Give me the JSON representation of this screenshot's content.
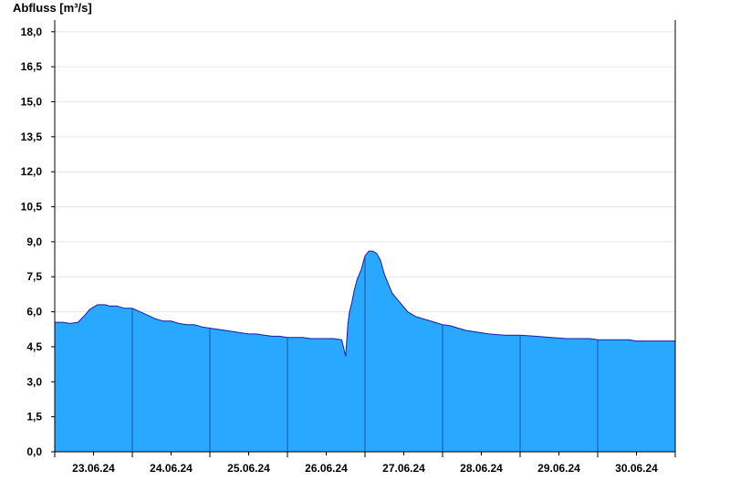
{
  "chart_data": {
    "type": "area",
    "ylabel": "Abfluss [m³/s]",
    "ylim": [
      0,
      18.5
    ],
    "y_ticks": [
      0.0,
      1.5,
      3.0,
      4.5,
      6.0,
      7.5,
      9.0,
      10.5,
      12.0,
      13.5,
      15.0,
      16.5,
      18.0
    ],
    "y_tick_labels": [
      "0,0",
      "1,5",
      "3,0",
      "4,5",
      "6,0",
      "7,5",
      "9,0",
      "10,5",
      "12,0",
      "13,5",
      "15,0",
      "16,5",
      "18,0"
    ],
    "x_range_days": [
      0,
      8
    ],
    "day_labels": [
      "23.06.24",
      "24.06.24",
      "25.06.24",
      "26.06.24",
      "27.06.24",
      "28.06.24",
      "29.06.24",
      "30.06.24"
    ],
    "grid": true,
    "series": [
      {
        "x": [
          0.0,
          0.1,
          0.2,
          0.3,
          0.4,
          0.45,
          0.55,
          0.6,
          0.65,
          0.7,
          0.8,
          0.9,
          1.0,
          1.1,
          1.2,
          1.3,
          1.4,
          1.5,
          1.6,
          1.7,
          1.8,
          1.9,
          2.0,
          2.1,
          2.2,
          2.3,
          2.4,
          2.5,
          2.6,
          2.7,
          2.8,
          2.9,
          3.0,
          3.1,
          3.2,
          3.3,
          3.4,
          3.5,
          3.6,
          3.7,
          3.75,
          3.78,
          3.8,
          3.83,
          3.86,
          3.9,
          3.95,
          4.0,
          4.05,
          4.1,
          4.15,
          4.2,
          4.25,
          4.3,
          4.35,
          4.4,
          4.45,
          4.5,
          4.55,
          4.6,
          4.65,
          4.7,
          4.75,
          4.8,
          4.9,
          5.0,
          5.1,
          5.2,
          5.3,
          5.4,
          5.5,
          5.6,
          5.8,
          6.0,
          6.2,
          6.4,
          6.6,
          6.8,
          6.9,
          7.0,
          7.2,
          7.4,
          7.5,
          7.6,
          7.8,
          8.0
        ],
        "y": [
          5.55,
          5.55,
          5.5,
          5.55,
          5.9,
          6.1,
          6.3,
          6.3,
          6.3,
          6.25,
          6.25,
          6.15,
          6.15,
          6.0,
          5.85,
          5.7,
          5.6,
          5.6,
          5.5,
          5.45,
          5.45,
          5.35,
          5.3,
          5.25,
          5.2,
          5.15,
          5.1,
          5.05,
          5.05,
          5.0,
          4.95,
          4.95,
          4.9,
          4.9,
          4.9,
          4.85,
          4.85,
          4.85,
          4.85,
          4.8,
          4.1,
          5.5,
          6.0,
          6.4,
          6.9,
          7.4,
          7.8,
          8.4,
          8.6,
          8.6,
          8.5,
          8.2,
          7.6,
          7.2,
          6.8,
          6.6,
          6.4,
          6.2,
          6.0,
          5.9,
          5.8,
          5.75,
          5.7,
          5.65,
          5.55,
          5.45,
          5.4,
          5.3,
          5.2,
          5.15,
          5.1,
          5.05,
          5.0,
          5.0,
          4.95,
          4.9,
          4.85,
          4.85,
          4.85,
          4.8,
          4.8,
          4.8,
          4.75,
          4.75,
          4.75,
          4.75
        ]
      }
    ],
    "colors": {
      "area_fill": "#29a8ff",
      "area_line": "#1a1aaa",
      "day_separator": "#1a4fa0",
      "grid": "#e6e6e6",
      "axis": "#000000"
    }
  }
}
